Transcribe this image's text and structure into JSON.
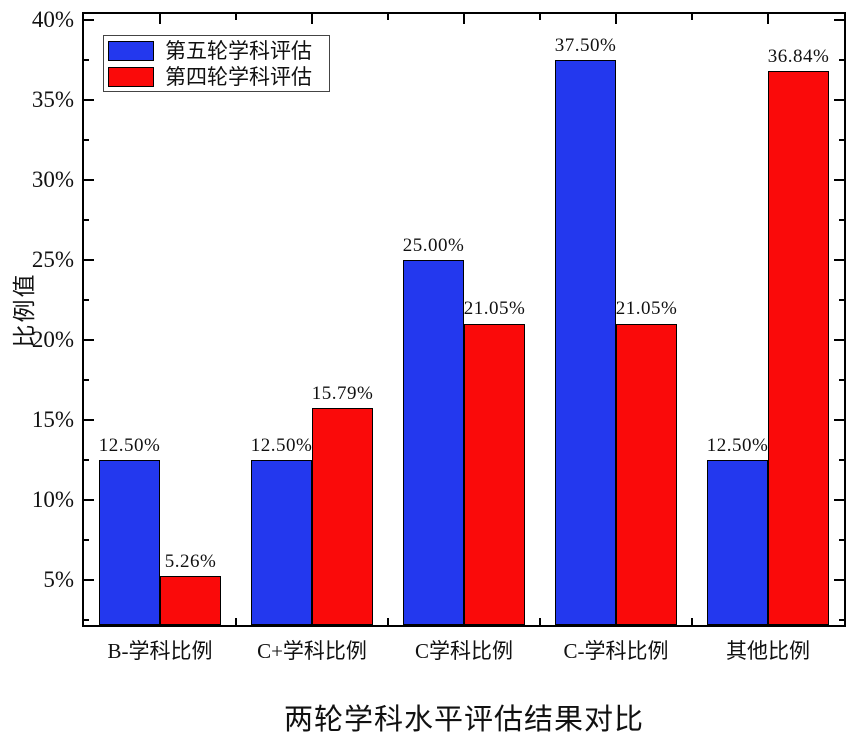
{
  "chart_data": {
    "type": "bar",
    "title": "两轮学科水平评估结果对比",
    "ylabel": "比例值",
    "categories": [
      "B-学科比例",
      "C+学科比例",
      "C学科比例",
      "C-学科比例",
      "其他比例"
    ],
    "series": [
      {
        "name": "第五轮学科评估",
        "color": "#2338EE",
        "values": [
          12.5,
          12.5,
          25.0,
          37.5,
          12.5
        ],
        "data_labels": [
          "12.50%",
          "12.50%",
          "25.00%",
          "37.50%",
          "12.50%"
        ]
      },
      {
        "name": "第四轮学科评估",
        "color": "#FA0A0A",
        "values": [
          5.26,
          15.79,
          21.05,
          21.05,
          36.84
        ],
        "data_labels": [
          "5.26%",
          "15.79%",
          "21.05%",
          "21.05%",
          "36.84%"
        ]
      }
    ],
    "y_major_ticks": [
      5,
      10,
      15,
      20,
      25,
      30,
      35,
      40
    ],
    "y_tick_labels": [
      "5%",
      "10%",
      "15%",
      "20%",
      "25%",
      "30%",
      "35%",
      "40%"
    ],
    "y_minor_ticks": [
      2.5,
      7.5,
      12.5,
      17.5,
      22.5,
      27.5,
      32.5,
      37.5
    ],
    "ylim": [
      2.2,
      40.4
    ],
    "grid": false,
    "legend_position": "top-left",
    "bar_border_color": "#000000",
    "frame_color": "#000000"
  }
}
